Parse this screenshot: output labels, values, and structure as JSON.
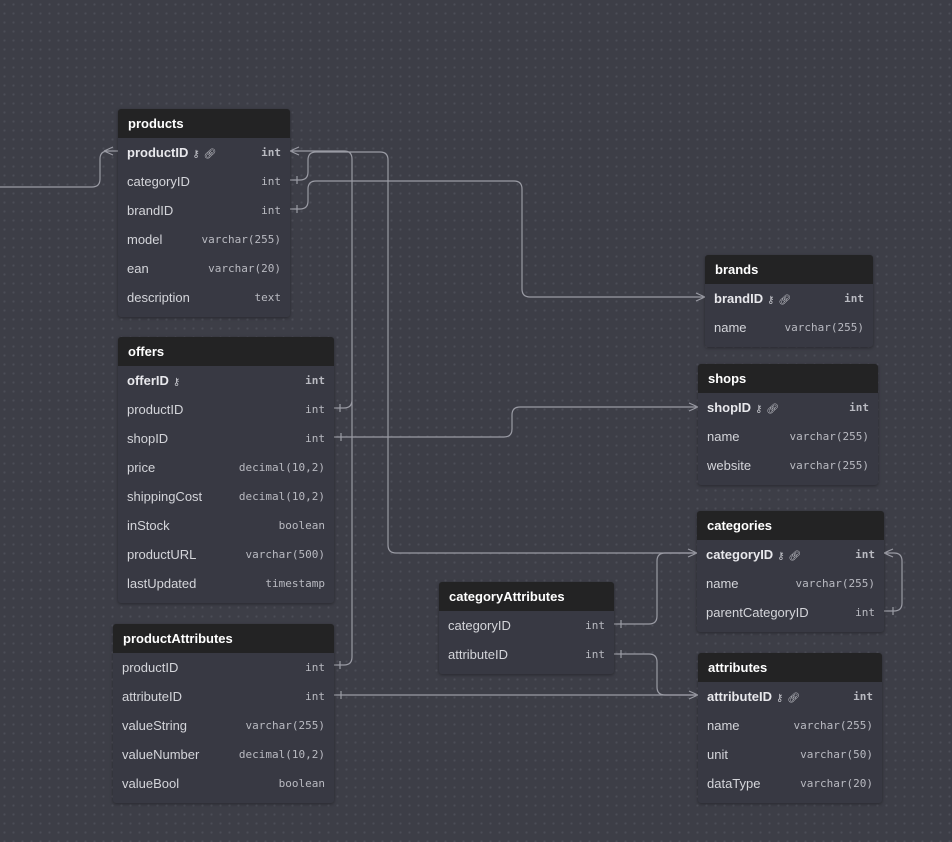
{
  "diagram": {
    "colors": {
      "background": "#3d3e47",
      "table_body": "#383943",
      "table_header": "#232324",
      "connector": "#9a9ba4"
    },
    "tables": [
      {
        "name": "products",
        "fields": [
          {
            "name": "productID",
            "type": "int",
            "pk": true,
            "icons": [
              "key-icon",
              "link-icon"
            ]
          },
          {
            "name": "categoryID",
            "type": "int"
          },
          {
            "name": "brandID",
            "type": "int"
          },
          {
            "name": "model",
            "type": "varchar(255)"
          },
          {
            "name": "ean",
            "type": "varchar(20)"
          },
          {
            "name": "description",
            "type": "text"
          }
        ]
      },
      {
        "name": "offers",
        "fields": [
          {
            "name": "offerID",
            "type": "int",
            "pk": true,
            "icons": [
              "key-icon"
            ]
          },
          {
            "name": "productID",
            "type": "int"
          },
          {
            "name": "shopID",
            "type": "int"
          },
          {
            "name": "price",
            "type": "decimal(10,2)"
          },
          {
            "name": "shippingCost",
            "type": "decimal(10,2)"
          },
          {
            "name": "inStock",
            "type": "boolean"
          },
          {
            "name": "productURL",
            "type": "varchar(500)"
          },
          {
            "name": "lastUpdated",
            "type": "timestamp"
          }
        ]
      },
      {
        "name": "productAttributes",
        "fields": [
          {
            "name": "productID",
            "type": "int"
          },
          {
            "name": "attributeID",
            "type": "int"
          },
          {
            "name": "valueString",
            "type": "varchar(255)"
          },
          {
            "name": "valueNumber",
            "type": "decimal(10,2)"
          },
          {
            "name": "valueBool",
            "type": "boolean"
          }
        ]
      },
      {
        "name": "categoryAttributes",
        "fields": [
          {
            "name": "categoryID",
            "type": "int"
          },
          {
            "name": "attributeID",
            "type": "int"
          }
        ]
      },
      {
        "name": "brands",
        "fields": [
          {
            "name": "brandID",
            "type": "int",
            "pk": true,
            "icons": [
              "key-icon",
              "link-icon"
            ]
          },
          {
            "name": "name",
            "type": "varchar(255)"
          }
        ]
      },
      {
        "name": "shops",
        "fields": [
          {
            "name": "shopID",
            "type": "int",
            "pk": true,
            "icons": [
              "key-icon",
              "link-icon"
            ]
          },
          {
            "name": "name",
            "type": "varchar(255)"
          },
          {
            "name": "website",
            "type": "varchar(255)"
          }
        ]
      },
      {
        "name": "categories",
        "fields": [
          {
            "name": "categoryID",
            "type": "int",
            "pk": true,
            "icons": [
              "key-icon",
              "link-icon"
            ]
          },
          {
            "name": "name",
            "type": "varchar(255)"
          },
          {
            "name": "parentCategoryID",
            "type": "int"
          }
        ]
      },
      {
        "name": "attributes",
        "fields": [
          {
            "name": "attributeID",
            "type": "int",
            "pk": true,
            "icons": [
              "key-icon",
              "link-icon"
            ]
          },
          {
            "name": "name",
            "type": "varchar(255)"
          },
          {
            "name": "unit",
            "type": "varchar(50)"
          },
          {
            "name": "dataType",
            "type": "varchar(20)"
          }
        ]
      }
    ]
  }
}
